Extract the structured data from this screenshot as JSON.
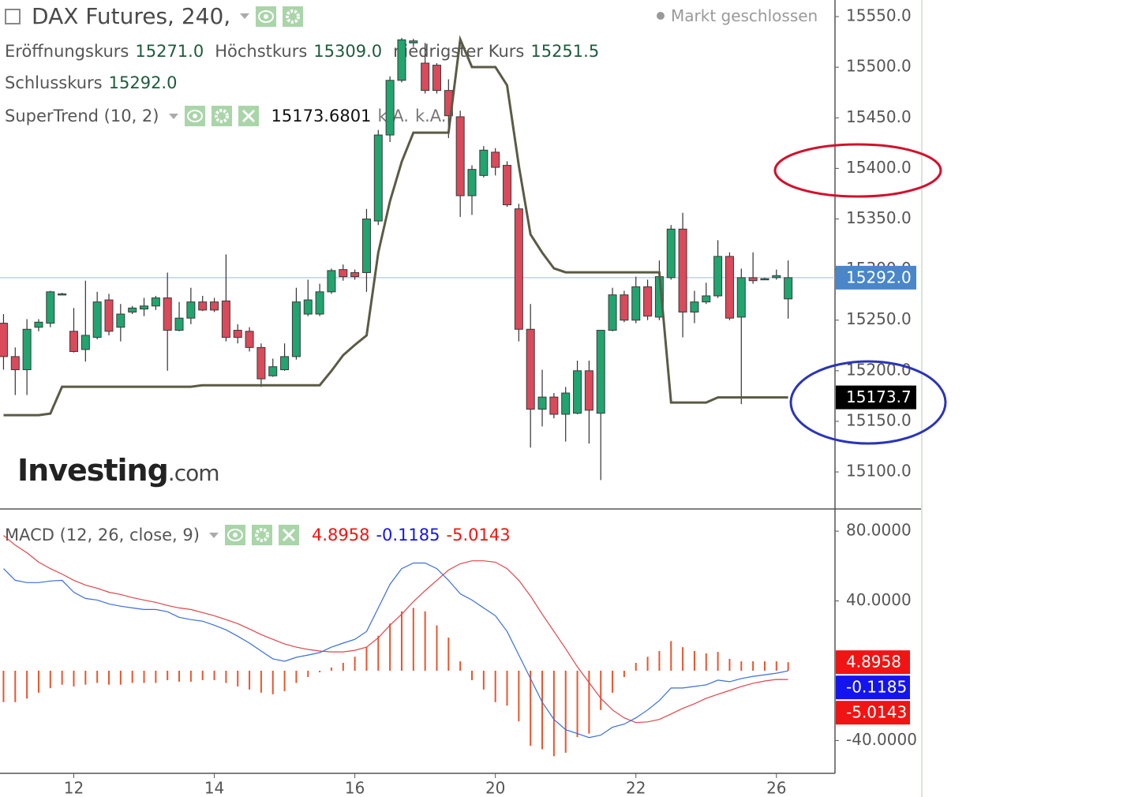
{
  "chart_data": [
    {
      "type": "candlestick",
      "title": "DAX Futures, 240,",
      "status": "Markt geschlossen",
      "ohlc_legend": [
        {
          "label": "Eröffnungskurs",
          "value": "15271.0"
        },
        {
          "label": "Höchstkurs",
          "value": "15309.0"
        },
        {
          "label": "niedrigster Kurs",
          "value": "15251.5"
        },
        {
          "label": "Schlusskurs",
          "value": "15292.0"
        }
      ],
      "last_close_label": "15292.0",
      "logo": {
        "name": "Investing",
        "suffix": ".com"
      },
      "up_color": "#22a46f",
      "down_color": "#d94a5a",
      "last_price_color": "#4a86c8",
      "open": [
        15247,
        15214,
        15201,
        15243,
        15247,
        15276,
        15239,
        15221,
        15233,
        15270,
        15243,
        15258,
        15261,
        15264,
        15272,
        15240,
        15252,
        15268,
        15268,
        15269,
        15240,
        15239,
        15223,
        15195,
        15201,
        15214,
        15256,
        15256,
        15278,
        15300,
        15297,
        15297,
        15348,
        15433,
        15487,
        15524,
        15504,
        15502,
        15477,
        15451,
        15373,
        15393,
        15416,
        15403,
        15360,
        15241,
        15162,
        15174,
        15157,
        15158,
        15200,
        15158,
        15240,
        15275,
        15250,
        15283,
        15253,
        15292,
        15340,
        15258,
        15268,
        15274,
        15313,
        15253,
        15292,
        15291,
        15292,
        15271
      ],
      "high": [
        15256,
        15223,
        15251,
        15251,
        15279,
        15277,
        15262,
        15289,
        15278,
        15276,
        15266,
        15264,
        15272,
        15274,
        15297,
        15268,
        15282,
        15274,
        15272,
        15315,
        15246,
        15243,
        15227,
        15212,
        15227,
        15282,
        15290,
        15286,
        15301,
        15305,
        15300,
        15360,
        15438,
        15491,
        15529,
        15528,
        15524,
        15504,
        15488,
        15457,
        15403,
        15422,
        15420,
        15407,
        15365,
        15266,
        15201,
        15178,
        15184,
        15210,
        15210,
        15240,
        15282,
        15279,
        15293,
        15290,
        15309,
        15344,
        15356,
        15279,
        15287,
        15329,
        15317,
        15301,
        15317,
        15292,
        15300,
        15309
      ],
      "low": [
        15201,
        15176,
        15176,
        15239,
        15243,
        15275,
        15218,
        15209,
        15231,
        15235,
        15229,
        15256,
        15254,
        15260,
        15200,
        15239,
        15246,
        15259,
        15258,
        15229,
        15227,
        15219,
        15184,
        15194,
        15200,
        15211,
        15254,
        15254,
        15276,
        15289,
        15290,
        15278,
        15344,
        15426,
        15485,
        15520,
        15474,
        15474,
        15430,
        15352,
        15354,
        15391,
        15393,
        15362,
        15229,
        15124,
        15145,
        15153,
        15130,
        15157,
        15128,
        15092,
        15239,
        15248,
        15247,
        15250,
        15250,
        15290,
        15233,
        15247,
        15266,
        15272,
        15250,
        15167,
        15286,
        15290,
        15290,
        15251.5
      ],
      "close": [
        15214,
        15201,
        15241,
        15248,
        15278,
        15276,
        15219,
        15235,
        15268,
        15239,
        15256,
        15262,
        15264,
        15272,
        15240,
        15252,
        15268,
        15260,
        15260,
        15233,
        15233,
        15223,
        15192,
        15204,
        15214,
        15268,
        15270,
        15278,
        15299,
        15293,
        15293,
        15350,
        15433,
        15487,
        15527,
        15526,
        15477,
        15477,
        15452,
        15373,
        15399,
        15418,
        15401,
        15364,
        15241,
        15162,
        15174,
        15157,
        15178,
        15200,
        15161,
        15240,
        15275,
        15250,
        15283,
        15254,
        15293,
        15340,
        15258,
        15268,
        15274,
        15313,
        15252,
        15292,
        15289,
        15291,
        15294,
        15292
      ],
      "supertrend": {
        "name": "SuperTrend (10, 2)",
        "color": "#5b5b45",
        "last_label": "15173.7",
        "extra_labels": [
          "k.A.",
          "k.A."
        ],
        "values": [
          15156.1,
          15156.1,
          15156.1,
          15156.1,
          15157.7,
          15184.2,
          15184.2,
          15184.2,
          15184.2,
          15184.2,
          15184.2,
          15184.2,
          15184.2,
          15184.2,
          15184.2,
          15184.2,
          15184.2,
          15185.7,
          15185.7,
          15185.7,
          15185.7,
          15185.7,
          15185.7,
          15185.7,
          15185.7,
          15185.7,
          15185.7,
          15185.7,
          15199.8,
          15215.4,
          15225.5,
          15234.9,
          15316.8,
          15367.5,
          15406.5,
          15435.3,
          15435.3,
          15435.3,
          15435.3,
          15527.4,
          15500.1,
          15500.1,
          15500.1,
          15482.1,
          15402.6,
          15334.7,
          15316.8,
          15301.2,
          15297.3,
          15297.3,
          15297.3,
          15297.3,
          15297.3,
          15297.3,
          15297.3,
          15297.3,
          15297.3,
          15168.6,
          15168.6,
          15168.6,
          15168.6,
          15173.7,
          15173.7,
          15173.7,
          15173.7,
          15173.7,
          15173.7,
          15173.6801
        ]
      },
      "ylim": [
        15063.4,
        15566.4
      ],
      "yticks": [
        {
          "value": 15550,
          "label": "15550.0"
        },
        {
          "value": 15500,
          "label": "15500.0"
        },
        {
          "value": 15450,
          "label": "15450.0"
        },
        {
          "value": 15400,
          "label": "15400.0"
        },
        {
          "value": 15350,
          "label": "15350.0"
        },
        {
          "value": 15300,
          "label": "15300.0"
        },
        {
          "value": 15250,
          "label": "15250.0"
        },
        {
          "value": 15200,
          "label": "15200.0"
        },
        {
          "value": 15150,
          "label": "15150.0"
        },
        {
          "value": 15100,
          "label": "15100.0"
        }
      ],
      "xlim": [
        -0.3,
        71
      ],
      "xticks": [
        {
          "value": 6,
          "label": "12"
        },
        {
          "value": 18,
          "label": "14"
        },
        {
          "value": 30,
          "label": "16"
        },
        {
          "value": 42,
          "label": "20"
        },
        {
          "value": 54,
          "label": "22"
        },
        {
          "value": 66,
          "label": "26"
        }
      ]
    },
    {
      "type": "macd",
      "title": "MACD (12, 26, close, 9)",
      "histogram": {
        "color": "#e8552d",
        "tag_color": "#f01414",
        "values": [
          -18,
          -18,
          -16,
          -12.6,
          -10,
          -8,
          -9,
          -8,
          -7,
          -8,
          -8,
          -7,
          -7,
          -7,
          -5.4,
          -6.3,
          -6.3,
          -5.4,
          -5.4,
          -7,
          -9,
          -10.8,
          -12.6,
          -13.5,
          -11.7,
          -7,
          -3.6,
          -0.9,
          1.8,
          4.5,
          8,
          13.5,
          20,
          27,
          34,
          36,
          34,
          26,
          19,
          5.4,
          -5.4,
          -10.8,
          -18,
          -20,
          -29,
          -43,
          -45,
          -49,
          -47,
          -38,
          -36,
          -22.5,
          -12.6,
          -3.6,
          4.5,
          8,
          11.3,
          17,
          13.5,
          11.3,
          10,
          10.8,
          6.8,
          5.4,
          5.4,
          5.4,
          5.4,
          4.8958
        ]
      },
      "macd_line": {
        "color": "#3a6fd8",
        "tag_color": "#1414f0",
        "values": [
          58.5,
          51.8,
          50.5,
          50.5,
          51.4,
          51.8,
          45,
          41.4,
          40.5,
          38.3,
          37,
          36,
          35.1,
          35.1,
          33.8,
          30.6,
          29.3,
          28.4,
          26.1,
          23.4,
          19.8,
          15.8,
          11.3,
          6.8,
          5.4,
          7.7,
          9,
          10.4,
          13.5,
          15.8,
          18,
          22.5,
          36,
          49.5,
          58.5,
          61.7,
          61.7,
          58.5,
          51.8,
          44.1,
          40.5,
          36,
          31.5,
          22.5,
          9,
          -4.5,
          -18,
          -27.9,
          -33.8,
          -36,
          -38.3,
          -36.9,
          -32.4,
          -30.6,
          -27,
          -22.5,
          -17.1,
          -9.9,
          -9.9,
          -9,
          -8.1,
          -5.4,
          -6.3,
          -4.5,
          -3.2,
          -2.3,
          -1.4,
          -0.1185
        ]
      },
      "signal_line": {
        "color": "#e0454a",
        "tag_color": "#f01414",
        "values": [
          77.5,
          72,
          67.6,
          62.2,
          58.5,
          55.4,
          51.8,
          49.1,
          47.3,
          45,
          43.7,
          41.9,
          40.5,
          39.2,
          37.4,
          36,
          35.1,
          33.3,
          31.5,
          29.3,
          27,
          23.9,
          20.7,
          18,
          15.3,
          13.5,
          12.2,
          11.3,
          10.8,
          10.8,
          11.7,
          13.5,
          18.9,
          26.1,
          32.4,
          39.6,
          45.9,
          51.8,
          57.7,
          61.3,
          63,
          63,
          62.2,
          58.5,
          51.8,
          42.8,
          32.4,
          22.5,
          12.6,
          2.3,
          -6.8,
          -15.8,
          -22.5,
          -27,
          -29.7,
          -29.3,
          -27.9,
          -24.8,
          -21.6,
          -18.9,
          -15.8,
          -13.5,
          -11.3,
          -9,
          -7.2,
          -5.9,
          -5,
          -5.0143
        ]
      },
      "ylim": [
        -58.8,
        92.7
      ],
      "yticks": [
        {
          "value": 80,
          "label": "80.0000"
        },
        {
          "value": 40,
          "label": "40.0000"
        },
        {
          "value": -40,
          "label": "-40.0000"
        }
      ]
    }
  ]
}
